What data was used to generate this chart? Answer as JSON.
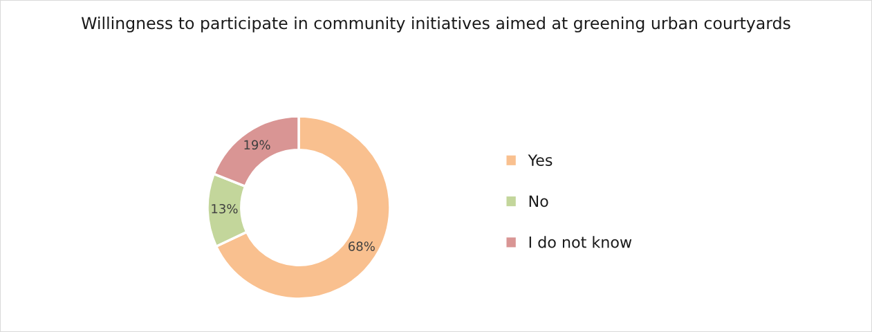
{
  "chart_data": {
    "type": "donut",
    "title": "Willingness to participate in community initiatives aimed at greening urban courtyards",
    "categories": [
      "Yes",
      "No",
      "I do not know"
    ],
    "values": [
      68,
      13,
      19
    ],
    "colors": [
      "#f9c08f",
      "#c3d69b",
      "#d99594"
    ],
    "value_labels": [
      "68%",
      "13%",
      "19%"
    ],
    "legend": "right"
  }
}
